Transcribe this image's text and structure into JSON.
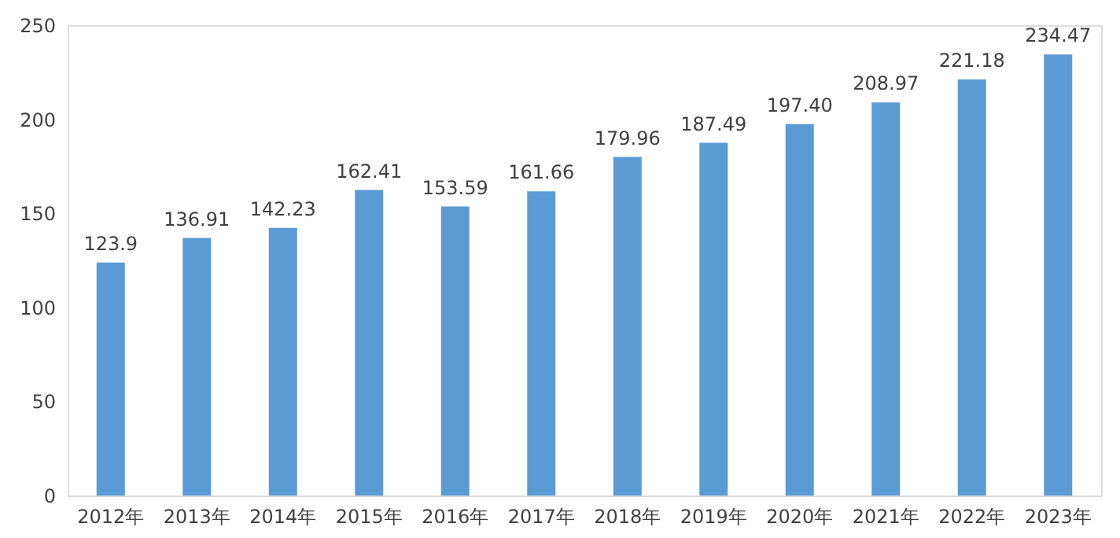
{
  "chart_data": {
    "type": "bar",
    "categories": [
      "2012年",
      "2013年",
      "2014年",
      "2015年",
      "2016年",
      "2017年",
      "2018年",
      "2019年",
      "2020年",
      "2021年",
      "2022年",
      "2023年"
    ],
    "values": [
      123.9,
      136.91,
      142.23,
      162.41,
      153.59,
      161.66,
      179.96,
      187.49,
      197.4,
      208.97,
      221.18,
      234.47
    ],
    "value_labels": [
      "123.9",
      "136.91",
      "142.23",
      "162.41",
      "153.59",
      "161.66",
      "179.96",
      "187.49",
      "197.40",
      "208.97",
      "221.18",
      "234.47"
    ],
    "color": "#5b9bd5",
    "ylim": [
      0,
      250
    ],
    "yticks": [
      0,
      50,
      100,
      150,
      200,
      250
    ],
    "grid": false
  }
}
